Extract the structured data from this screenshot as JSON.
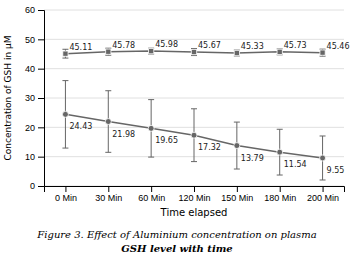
{
  "chart_data": {
    "type": "line",
    "title": "Figure 3. Effect of Aluminium concentration on plasma",
    "subtitle": "GSH level with time",
    "x_label": "Time elapsed",
    "y_label": "Concentration of GSH in μM",
    "categories": [
      "0 Min",
      "30 Min",
      "60 Min",
      "120 Min",
      "150 Min",
      "180 Min",
      "200 Min"
    ],
    "series": [
      {
        "color": "#666666",
        "marker": "square",
        "line_style": "solid",
        "values": [
          45.11,
          45.78,
          45.98,
          45.67,
          45.33,
          45.73,
          45.46
        ],
        "errors": [
          1.5,
          1.2,
          1.0,
          1.2,
          1.0,
          1.0,
          1.2
        ]
      },
      {
        "color": "#666666",
        "marker": "circle",
        "line_style": "solid",
        "values": [
          24.43,
          21.98,
          19.65,
          17.32,
          13.79,
          11.54,
          9.55
        ],
        "errors": [
          11.5,
          10.5,
          9.8,
          9.0,
          8.0,
          7.8,
          7.5
        ]
      }
    ],
    "ylim": [
      0,
      60
    ],
    "yticks": [
      0,
      10,
      20,
      30,
      40,
      50,
      60
    ],
    "grid": true,
    "data_labels": true
  }
}
